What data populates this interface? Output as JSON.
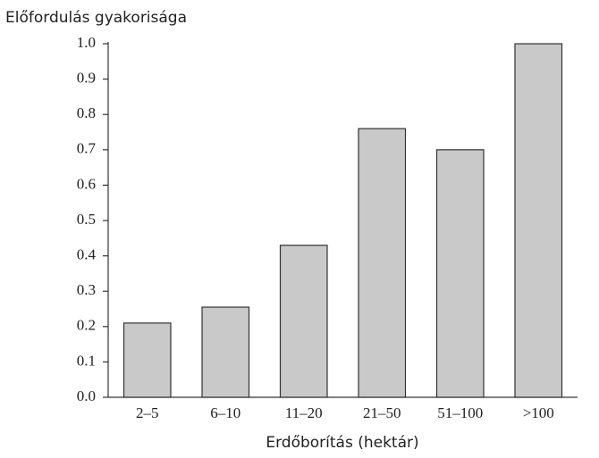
{
  "chart_data": {
    "type": "bar",
    "y_axis_label": "Előfordulás gyakorisága",
    "x_axis_label": "Erdőborítás (hektár)",
    "categories": [
      "2–5",
      "6–10",
      "11–20",
      "21–50",
      "51–100",
      ">100"
    ],
    "values": [
      0.21,
      0.255,
      0.43,
      0.76,
      0.7,
      1.0
    ],
    "color": "#c9c9c9",
    "ylim": [
      0,
      1
    ],
    "yticks": [
      {
        "value": 0,
        "label": "0.0"
      },
      0.1,
      0.2,
      0.3,
      0.4,
      0.5,
      0.6,
      0.7,
      0.8,
      0.9,
      {
        "value": 1,
        "label": "1.0"
      }
    ],
    "grid": false
  }
}
